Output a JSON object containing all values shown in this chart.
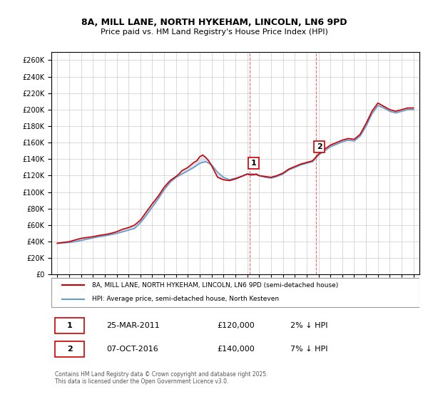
{
  "title_line1": "8A, MILL LANE, NORTH HYKEHAM, LINCOLN, LN6 9PD",
  "title_line2": "Price paid vs. HM Land Registry's House Price Index (HPI)",
  "ylabel": "",
  "ylim": [
    0,
    270000
  ],
  "yticks": [
    0,
    20000,
    40000,
    60000,
    80000,
    100000,
    120000,
    140000,
    160000,
    180000,
    200000,
    220000,
    240000,
    260000
  ],
  "legend_entry1": "8A, MILL LANE, NORTH HYKEHAM, LINCOLN, LN6 9PD (semi-detached house)",
  "legend_entry2": "HPI: Average price, semi-detached house, North Kesteven",
  "annotation1_label": "1",
  "annotation1_date": "25-MAR-2011",
  "annotation1_price": "£120,000",
  "annotation1_hpi": "2% ↓ HPI",
  "annotation2_label": "2",
  "annotation2_date": "07-OCT-2016",
  "annotation2_price": "£140,000",
  "annotation2_hpi": "7% ↓ HPI",
  "footer": "Contains HM Land Registry data © Crown copyright and database right 2025.\nThis data is licensed under the Open Government Licence v3.0.",
  "line1_color": "#cc0000",
  "line2_color": "#6699cc",
  "shading_color": "#c8d8e8",
  "vline_color": "#ff6666",
  "background_color": "#ffffff",
  "grid_color": "#cccccc",
  "sale1_x": 2011.23,
  "sale1_y": 120000,
  "sale2_x": 2016.77,
  "sale2_y": 140000,
  "hpi_years": [
    1995,
    1995.5,
    1996,
    1996.5,
    1997,
    1997.5,
    1998,
    1998.5,
    1999,
    1999.5,
    2000,
    2000.5,
    2001,
    2001.5,
    2002,
    2002.5,
    2003,
    2003.5,
    2004,
    2004.5,
    2005,
    2005.5,
    2006,
    2006.5,
    2007,
    2007.5,
    2008,
    2008.5,
    2009,
    2009.5,
    2010,
    2010.5,
    2011,
    2011.5,
    2012,
    2012.5,
    2013,
    2013.5,
    2014,
    2014.5,
    2015,
    2015.5,
    2016,
    2016.5,
    2017,
    2017.5,
    2018,
    2018.5,
    2019,
    2019.5,
    2020,
    2020.5,
    2021,
    2021.5,
    2022,
    2022.5,
    2023,
    2023.5,
    2024,
    2024.5,
    2025
  ],
  "hpi_values": [
    38000,
    38500,
    39000,
    40000,
    41500,
    43000,
    44500,
    46000,
    47000,
    48500,
    50000,
    52000,
    54000,
    56000,
    63000,
    72000,
    82000,
    92000,
    103000,
    112000,
    118000,
    122000,
    126000,
    130000,
    135000,
    137000,
    133000,
    124000,
    118000,
    115000,
    117000,
    119000,
    122000,
    122000,
    120000,
    118000,
    117000,
    119000,
    122000,
    127000,
    130000,
    133000,
    135000,
    137000,
    145000,
    150000,
    155000,
    158000,
    161000,
    163000,
    162000,
    168000,
    180000,
    195000,
    205000,
    202000,
    198000,
    196000,
    198000,
    200000,
    200000
  ],
  "price_years": [
    1995,
    1995.25,
    1995.5,
    1995.75,
    1996,
    1996.25,
    1996.5,
    1996.75,
    1997,
    1997.5,
    1998,
    1998.5,
    1999,
    1999.5,
    2000,
    2000.5,
    2001,
    2001.5,
    2002,
    2002.5,
    2003,
    2003.5,
    2004,
    2004.5,
    2005,
    2005.25,
    2005.5,
    2005.75,
    2006,
    2006.25,
    2006.5,
    2006.75,
    2007,
    2007.25,
    2007.5,
    2007.75,
    2008,
    2008.25,
    2008.5,
    2009,
    2009.5,
    2010,
    2010.5,
    2011,
    2011.25,
    2011.5,
    2011.75,
    2012,
    2012.5,
    2013,
    2013.5,
    2014,
    2014.5,
    2015,
    2015.5,
    2016,
    2016.5,
    2017,
    2017.5,
    2018,
    2018.5,
    2019,
    2019.5,
    2020,
    2020.5,
    2021,
    2021.5,
    2022,
    2022.5,
    2023,
    2023.5,
    2024,
    2024.5,
    2025
  ],
  "price_values": [
    38000,
    38500,
    39000,
    39500,
    40000,
    41000,
    42000,
    43000,
    44000,
    45000,
    46000,
    47500,
    48500,
    50000,
    52000,
    55000,
    57000,
    60000,
    66000,
    76000,
    86000,
    95000,
    106000,
    114000,
    119000,
    122000,
    126000,
    128000,
    130000,
    133000,
    136000,
    138000,
    143000,
    145000,
    142000,
    138000,
    132000,
    125000,
    118000,
    115000,
    114000,
    116000,
    119000,
    122000,
    121000,
    121000,
    122000,
    120000,
    119000,
    118000,
    120000,
    123000,
    128000,
    131000,
    134000,
    136000,
    138000,
    146000,
    152000,
    157000,
    160000,
    163000,
    165000,
    164000,
    170000,
    183000,
    198000,
    208000,
    204000,
    200000,
    198000,
    200000,
    202000,
    202000
  ],
  "xlim": [
    1994.5,
    2025.5
  ],
  "xticks": [
    1995,
    1996,
    1997,
    1998,
    1999,
    2000,
    2001,
    2002,
    2003,
    2004,
    2005,
    2006,
    2007,
    2008,
    2009,
    2010,
    2011,
    2012,
    2013,
    2014,
    2015,
    2016,
    2017,
    2018,
    2019,
    2020,
    2021,
    2022,
    2023,
    2024,
    2025
  ]
}
